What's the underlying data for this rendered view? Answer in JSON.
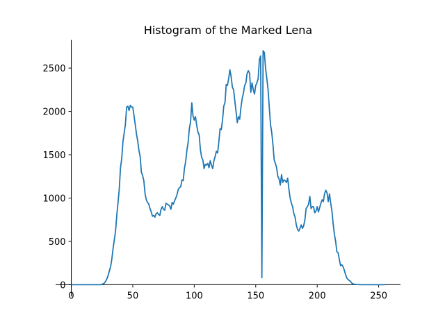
{
  "chart_data": {
    "type": "line",
    "title": "Histogram of the Marked Lena",
    "x": [
      0,
      1,
      2,
      3,
      4,
      5,
      6,
      7,
      8,
      9,
      10,
      11,
      12,
      13,
      14,
      15,
      16,
      17,
      18,
      19,
      20,
      21,
      22,
      23,
      24,
      25,
      26,
      27,
      28,
      29,
      30,
      31,
      32,
      33,
      34,
      35,
      36,
      37,
      38,
      39,
      40,
      41,
      42,
      43,
      44,
      45,
      46,
      47,
      48,
      49,
      50,
      51,
      52,
      53,
      54,
      55,
      56,
      57,
      58,
      59,
      60,
      61,
      62,
      63,
      64,
      65,
      66,
      67,
      68,
      69,
      70,
      71,
      72,
      73,
      74,
      75,
      76,
      77,
      78,
      79,
      80,
      81,
      82,
      83,
      84,
      85,
      86,
      87,
      88,
      89,
      90,
      91,
      92,
      93,
      94,
      95,
      96,
      97,
      98,
      99,
      100,
      101,
      102,
      103,
      104,
      105,
      106,
      107,
      108,
      109,
      110,
      111,
      112,
      113,
      114,
      115,
      116,
      117,
      118,
      119,
      120,
      121,
      122,
      123,
      124,
      125,
      126,
      127,
      128,
      129,
      130,
      131,
      132,
      133,
      134,
      135,
      136,
      137,
      138,
      139,
      140,
      141,
      142,
      143,
      144,
      145,
      146,
      147,
      148,
      149,
      150,
      151,
      152,
      153,
      154,
      155,
      156,
      157,
      158,
      159,
      160,
      161,
      162,
      163,
      164,
      165,
      166,
      167,
      168,
      169,
      170,
      171,
      172,
      173,
      174,
      175,
      176,
      177,
      178,
      179,
      180,
      181,
      182,
      183,
      184,
      185,
      186,
      187,
      188,
      189,
      190,
      191,
      192,
      193,
      194,
      195,
      196,
      197,
      198,
      199,
      200,
      201,
      202,
      203,
      204,
      205,
      206,
      207,
      208,
      209,
      210,
      211,
      212,
      213,
      214,
      215,
      216,
      217,
      218,
      219,
      220,
      221,
      222,
      223,
      224,
      225,
      226,
      227,
      228,
      229,
      230,
      231,
      232,
      233,
      234,
      235,
      236,
      237,
      238,
      239,
      240,
      241,
      242,
      243,
      244,
      245,
      246,
      247,
      248,
      249,
      250,
      251,
      252,
      253,
      254,
      255
    ],
    "series": [
      {
        "color": "#1f77b4",
        "values": [
          0,
          0,
          0,
          0,
          0,
          0,
          0,
          0,
          0,
          0,
          0,
          0,
          0,
          0,
          0,
          0,
          0,
          0,
          0,
          0,
          0,
          0,
          0,
          0,
          0,
          5,
          10,
          20,
          40,
          70,
          110,
          160,
          210,
          300,
          420,
          520,
          620,
          800,
          950,
          1100,
          1350,
          1450,
          1650,
          1750,
          1850,
          2050,
          2060,
          2010,
          2070,
          2050,
          2050,
          1950,
          1850,
          1740,
          1660,
          1550,
          1480,
          1300,
          1260,
          1200,
          1050,
          980,
          950,
          930,
          880,
          840,
          790,
          800,
          780,
          820,
          830,
          810,
          800,
          870,
          900,
          870,
          860,
          940,
          930,
          920,
          910,
          870,
          950,
          930,
          970,
          1000,
          1040,
          1100,
          1120,
          1130,
          1210,
          1200,
          1340,
          1420,
          1550,
          1640,
          1800,
          1880,
          2100,
          1950,
          1900,
          1940,
          1840,
          1760,
          1730,
          1560,
          1470,
          1440,
          1340,
          1390,
          1380,
          1400,
          1350,
          1430,
          1380,
          1340,
          1430,
          1480,
          1540,
          1520,
          1650,
          1800,
          1790,
          1900,
          2060,
          2100,
          2310,
          2300,
          2380,
          2480,
          2400,
          2280,
          2250,
          2120,
          2000,
          1870,
          1940,
          1910,
          2050,
          2150,
          2210,
          2300,
          2330,
          2440,
          2470,
          2440,
          2220,
          2330,
          2250,
          2200,
          2300,
          2330,
          2380,
          2600,
          2640,
          80,
          2700,
          2680,
          2500,
          2380,
          2260,
          2050,
          1850,
          1760,
          1620,
          1440,
          1400,
          1350,
          1250,
          1220,
          1150,
          1270,
          1180,
          1210,
          1200,
          1180,
          1230,
          1100,
          1000,
          940,
          900,
          820,
          780,
          690,
          640,
          620,
          650,
          690,
          650,
          680,
          750,
          880,
          900,
          930,
          1020,
          880,
          900,
          900,
          830,
          850,
          900,
          840,
          890,
          940,
          980,
          960,
          1050,
          1090,
          1060,
          960,
          1050,
          940,
          850,
          700,
          580,
          500,
          380,
          370,
          290,
          220,
          230,
          210,
          170,
          120,
          80,
          60,
          50,
          40,
          20,
          10,
          5,
          5,
          2,
          2,
          1,
          1,
          0,
          0,
          0,
          0,
          0,
          0,
          0,
          0,
          0,
          0,
          0,
          0,
          0,
          0,
          0,
          0,
          0,
          0,
          0,
          0
        ]
      }
    ],
    "xlim": [
      -12.75,
      267.75
    ],
    "ylim": [
      -134.5,
      2824.5
    ],
    "xticks": [
      0,
      50,
      100,
      150,
      200,
      250
    ],
    "yticks": [
      0,
      500,
      1000,
      1500,
      2000,
      2500
    ]
  }
}
